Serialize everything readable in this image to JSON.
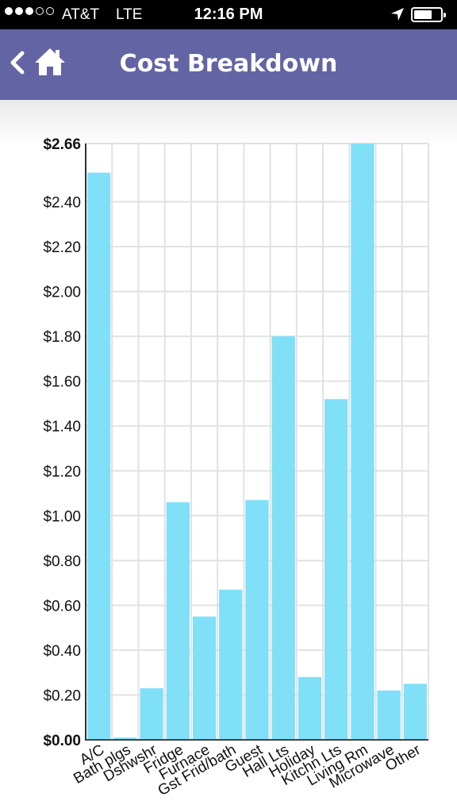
{
  "status_bar": {
    "carrier": "AT&T",
    "network": "LTE",
    "time": "12:16 PM",
    "signal_bars_filled": 3,
    "signal_bars_total": 5
  },
  "nav": {
    "title": "Cost Breakdown",
    "back_icon": "chevron-left-icon",
    "home_icon": "home-icon"
  },
  "colors": {
    "nav_bg": "#6264a3",
    "bar": "#7fe0f8"
  },
  "chart_data": {
    "type": "bar",
    "title": "",
    "xlabel": "",
    "ylabel": "",
    "categories": [
      "A/C",
      "Bath plgs",
      "Dshwshr",
      "Fridge",
      "Furnace",
      "Gst Frid/bath",
      "Guest",
      "Hall Lts",
      "Holiday",
      "Kitchn Lts",
      "Living Rm",
      "Microwave",
      "Other"
    ],
    "values": [
      2.53,
      0.01,
      0.23,
      1.06,
      0.55,
      0.67,
      1.07,
      1.8,
      0.28,
      1.52,
      2.66,
      0.22,
      0.25
    ],
    "ylim": [
      0,
      2.66
    ],
    "yticks": [
      "$0.00",
      "$0.20",
      "$0.40",
      "$0.60",
      "$0.80",
      "$1.00",
      "$1.20",
      "$1.40",
      "$1.60",
      "$1.80",
      "$2.00",
      "$2.20",
      "$2.40",
      "$2.66"
    ],
    "ytick_values": [
      0,
      0.2,
      0.4,
      0.6,
      0.8,
      1.0,
      1.2,
      1.4,
      1.6,
      1.8,
      2.0,
      2.2,
      2.4,
      2.66
    ],
    "grid": true,
    "legend": false
  }
}
